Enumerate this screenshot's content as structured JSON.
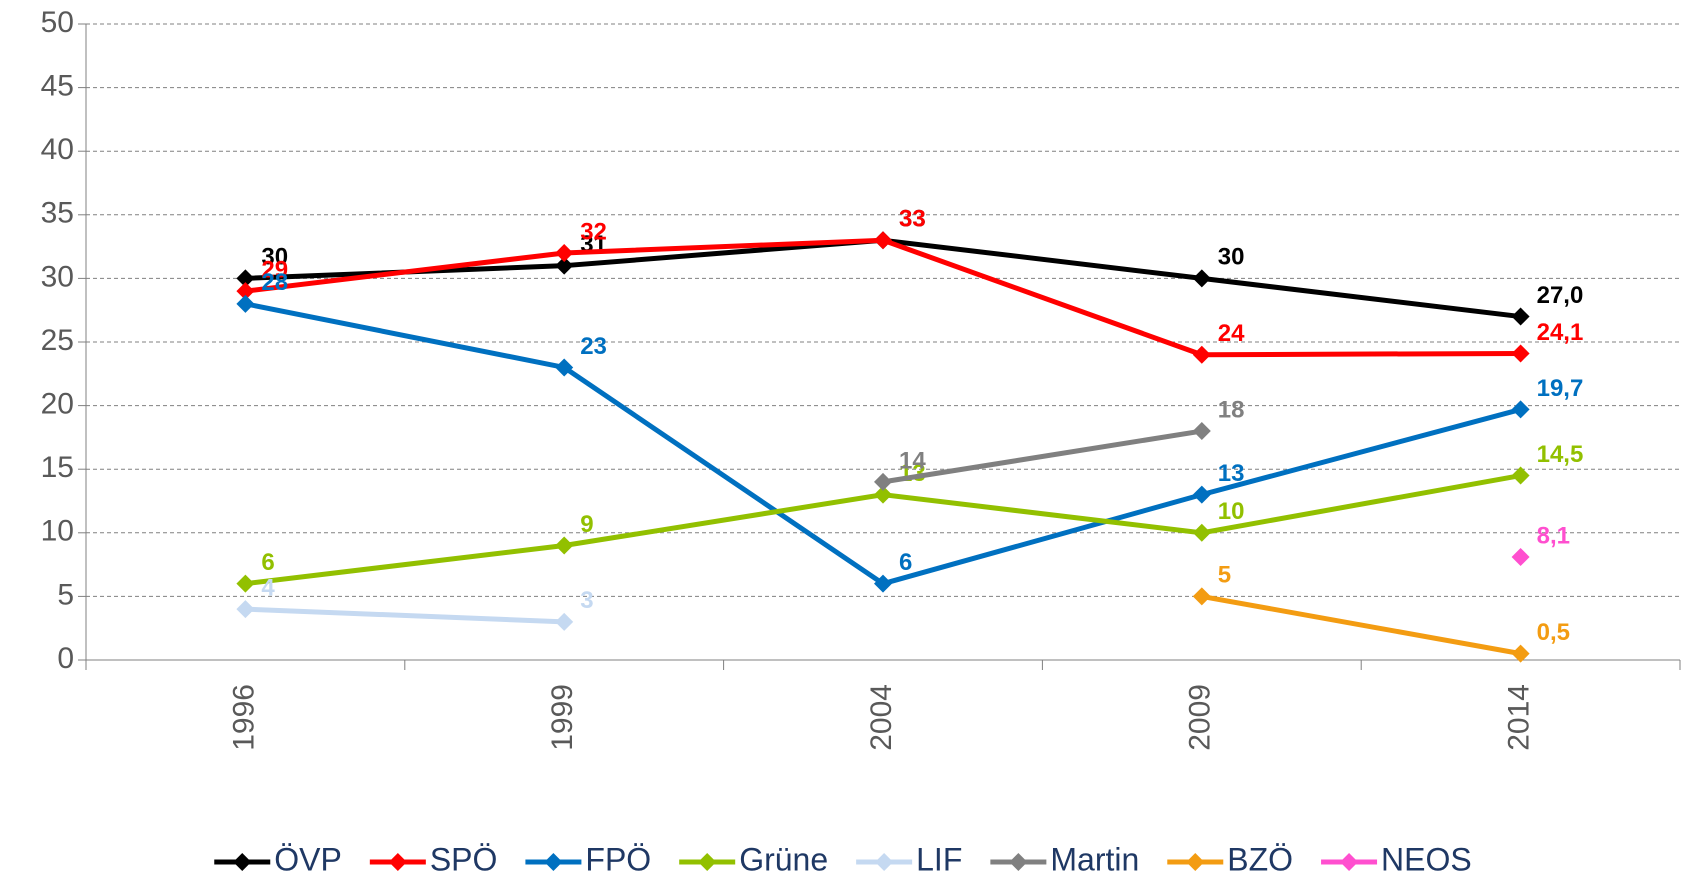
{
  "chart_data": {
    "type": "line",
    "categories": [
      "1996",
      "1999",
      "2004",
      "2009",
      "2014"
    ],
    "ylim": [
      0,
      50
    ],
    "yticks": [
      0,
      5,
      10,
      15,
      20,
      25,
      30,
      35,
      40,
      45,
      50
    ],
    "grid": true,
    "legend": "bottom",
    "series": [
      {
        "name": "ÖVP",
        "color": "#000000",
        "values": [
          30,
          31,
          33,
          30,
          27.0
        ],
        "value_labels": [
          "30",
          "31",
          "33",
          "30",
          "27,0"
        ]
      },
      {
        "name": "SPÖ",
        "color": "#ff0000",
        "values": [
          29,
          32,
          33,
          24,
          24.1
        ],
        "value_labels": [
          "29",
          "32",
          "33",
          "24",
          "24,1"
        ]
      },
      {
        "name": "FPÖ",
        "color": "#0070c0",
        "values": [
          28,
          23,
          6,
          13,
          19.7
        ],
        "value_labels": [
          "28",
          "23",
          "6",
          "13",
          "19,7"
        ]
      },
      {
        "name": "Grüne",
        "color": "#92c000",
        "values": [
          6,
          9,
          13,
          10,
          14.5
        ],
        "value_labels": [
          "6",
          "9",
          "13",
          "10",
          "14,5"
        ]
      },
      {
        "name": "LIF",
        "color": "#c5d9f1",
        "values": [
          4,
          3,
          null,
          null,
          null
        ]
      },
      {
        "name": "Martin",
        "color": "#808080",
        "values": [
          null,
          null,
          14,
          18,
          null
        ]
      },
      {
        "name": "BZÖ",
        "color": "#f39c12",
        "values": [
          null,
          null,
          null,
          5,
          0.5
        ],
        "value_labels": [
          null,
          null,
          null,
          "5",
          "0,5"
        ]
      },
      {
        "name": "NEOS",
        "color": "#ff4fcf",
        "values": [
          null,
          null,
          null,
          null,
          8.1
        ],
        "value_labels": [
          null,
          null,
          null,
          null,
          "8,1"
        ]
      }
    ]
  }
}
